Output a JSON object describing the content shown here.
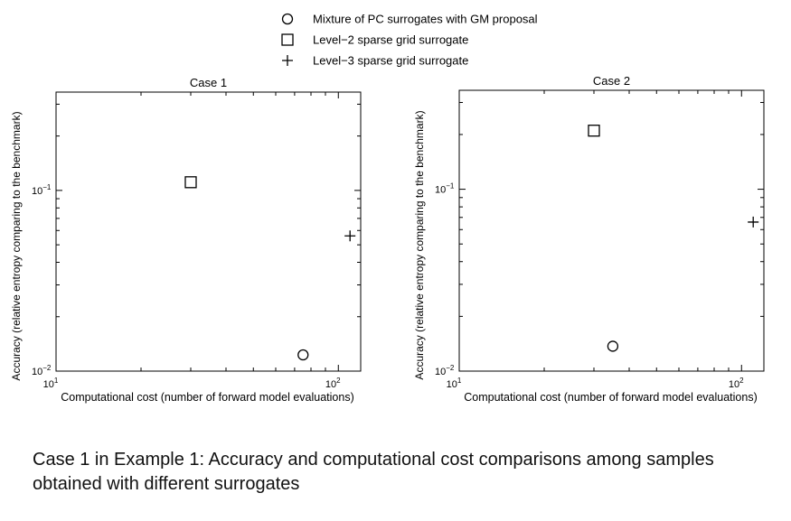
{
  "legend": [
    {
      "marker": "circle",
      "label": "Mixture of PC surrogates with GM proposal"
    },
    {
      "marker": "square",
      "label": "Level−2 sparse grid surrogate"
    },
    {
      "marker": "plus",
      "label": "Level−3 sparse grid surrogate"
    }
  ],
  "chart_data": [
    {
      "type": "scatter",
      "title": "Case 1",
      "xlabel": "Computational cost (number of forward model evaluations)",
      "ylabel": "Accuracy (relative entropy comparing to the benchmark)",
      "xscale": "log",
      "yscale": "log",
      "xlim": [
        10,
        120
      ],
      "ylim": [
        0.01,
        0.35
      ],
      "xticks": [
        {
          "value": 10,
          "base": "10",
          "exp": "1"
        },
        {
          "value": 100,
          "base": "10",
          "exp": "2"
        }
      ],
      "yticks": [
        {
          "value": 0.01,
          "base": "10",
          "exp": "−2"
        },
        {
          "value": 0.1,
          "base": "10",
          "exp": "−1"
        }
      ],
      "grid": false,
      "points": [
        {
          "marker": "circle",
          "x": 75,
          "y": 0.0123
        },
        {
          "marker": "square",
          "x": 30,
          "y": 0.111
        },
        {
          "marker": "plus",
          "x": 110,
          "y": 0.056
        }
      ]
    },
    {
      "type": "scatter",
      "title": "Case 2",
      "xlabel": "Computational cost (number of forward model evaluations)",
      "ylabel": "Accuracy (relative entropy comparing to the benchmark)",
      "xscale": "log",
      "yscale": "log",
      "xlim": [
        10,
        120
      ],
      "ylim": [
        0.01,
        0.35
      ],
      "xticks": [
        {
          "value": 10,
          "base": "10",
          "exp": "1"
        },
        {
          "value": 100,
          "base": "10",
          "exp": "2"
        }
      ],
      "yticks": [
        {
          "value": 0.01,
          "base": "10",
          "exp": "−2"
        },
        {
          "value": 0.1,
          "base": "10",
          "exp": "−1"
        }
      ],
      "grid": false,
      "points": [
        {
          "marker": "circle",
          "x": 35,
          "y": 0.0137
        },
        {
          "marker": "square",
          "x": 30,
          "y": 0.21
        },
        {
          "marker": "plus",
          "x": 110,
          "y": 0.066
        }
      ]
    }
  ],
  "caption": "Case 1 in Example 1: Accuracy and computational cost comparisons among samples obtained with different surrogates"
}
